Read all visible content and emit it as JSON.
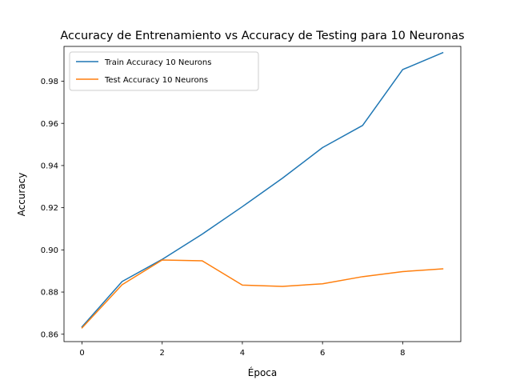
{
  "chart_data": {
    "type": "line",
    "title": "Accuracy de Entrenamiento vs Accuracy de Testing para 10 Neuronas",
    "xlabel": "Época",
    "ylabel": "Accuracy",
    "x": [
      0,
      1,
      2,
      3,
      4,
      5,
      6,
      7,
      8,
      9
    ],
    "xlim": [
      -0.45,
      9.45
    ],
    "ylim": [
      0.8565,
      0.9965
    ],
    "xticks": [
      0,
      2,
      4,
      6,
      8
    ],
    "yticks": [
      0.86,
      0.88,
      0.9,
      0.92,
      0.94,
      0.96,
      0.98
    ],
    "xtick_labels": [
      "0",
      "2",
      "4",
      "6",
      "8"
    ],
    "ytick_labels": [
      "0.86",
      "0.88",
      "0.90",
      "0.92",
      "0.94",
      "0.96",
      "0.98"
    ],
    "grid": false,
    "legend_position": "upper-left",
    "series": [
      {
        "name": "Train Accuracy 10 Neurons",
        "color": "#1f77b4",
        "values": [
          0.8635,
          0.885,
          0.8955,
          0.9075,
          0.9205,
          0.934,
          0.9485,
          0.959,
          0.9855,
          0.9935
        ]
      },
      {
        "name": "Test Accuracy 10 Neurons",
        "color": "#ff7f0e",
        "values": [
          0.863,
          0.8835,
          0.8952,
          0.8948,
          0.8833,
          0.8827,
          0.8839,
          0.8873,
          0.8897,
          0.891
        ]
      }
    ]
  }
}
